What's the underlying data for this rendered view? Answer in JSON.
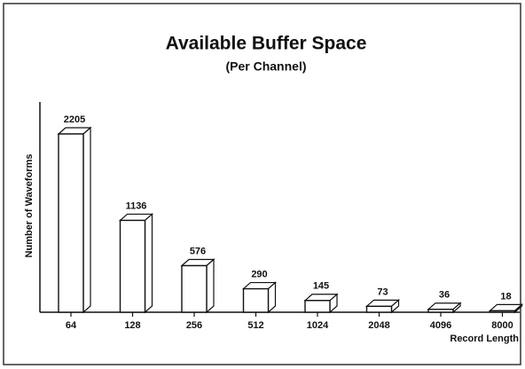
{
  "chart_data": {
    "type": "bar3d",
    "title": "Available Buffer Space",
    "subtitle": "(Per Channel)",
    "x_label": "Record Length",
    "y_label": "Number of Waveforms",
    "categories": [
      "64",
      "128",
      "256",
      "512",
      "1024",
      "2048",
      "4096",
      "8000"
    ],
    "values": [
      2205,
      1136,
      576,
      290,
      145,
      73,
      36,
      18
    ],
    "ylim": [
      0,
      2600
    ],
    "color": "#ffffff"
  }
}
